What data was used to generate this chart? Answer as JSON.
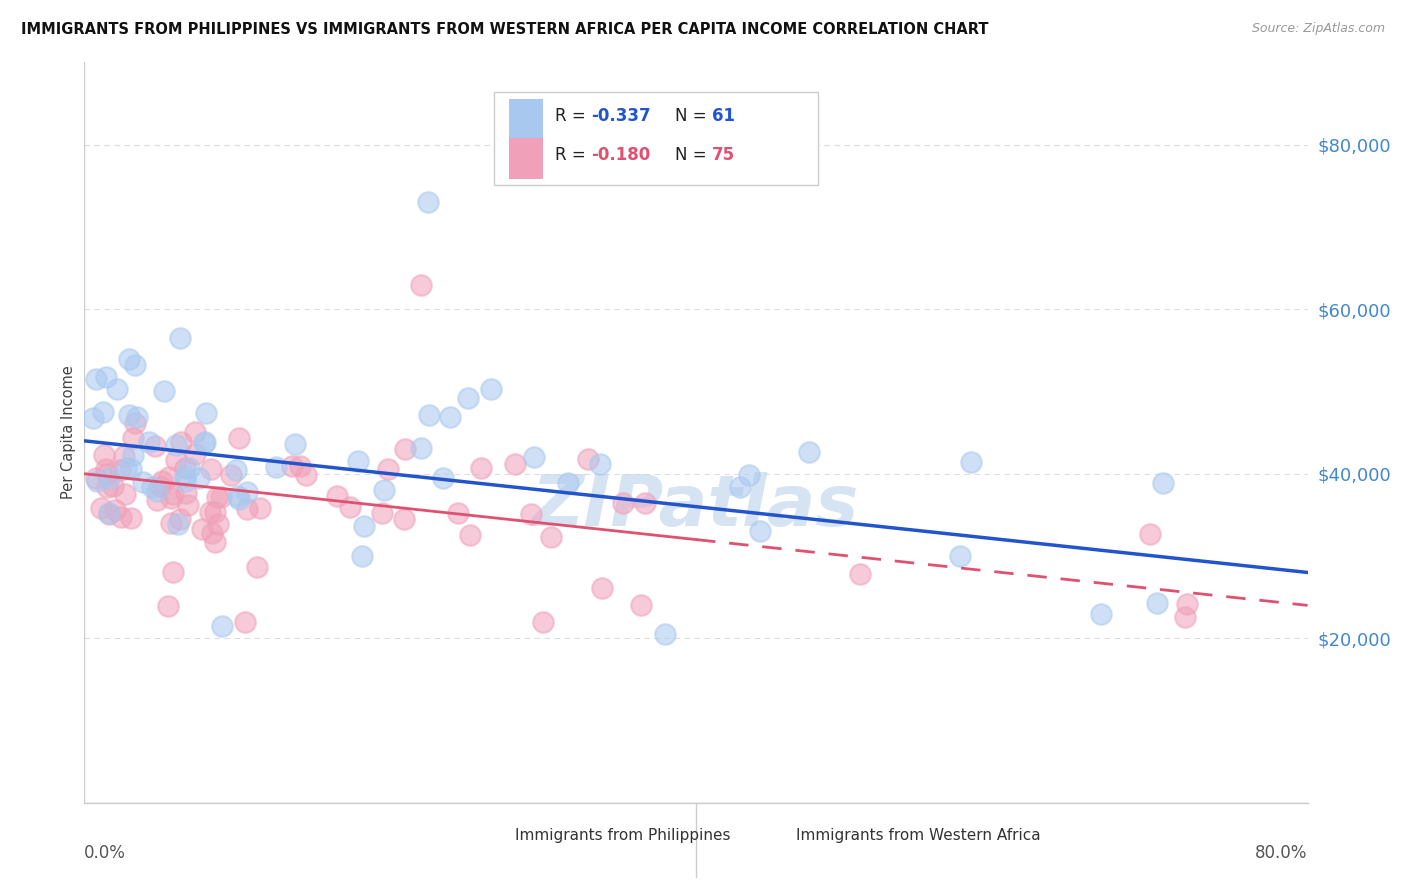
{
  "title": "IMMIGRANTS FROM PHILIPPINES VS IMMIGRANTS FROM WESTERN AFRICA PER CAPITA INCOME CORRELATION CHART",
  "source": "Source: ZipAtlas.com",
  "ylabel": "Per Capita Income",
  "y_ticks": [
    20000,
    40000,
    60000,
    80000
  ],
  "y_tick_labels": [
    "$20,000",
    "$40,000",
    "$60,000",
    "$80,000"
  ],
  "xlim": [
    0.0,
    0.8
  ],
  "ylim": [
    0,
    90000
  ],
  "legend_r1": "R = -0.337",
  "legend_n1": "N = 61",
  "legend_r2": "R = -0.180",
  "legend_n2": "N = 75",
  "color_blue": "#A8C8F0",
  "color_pink": "#F0A0B8",
  "color_blue_line": "#2255CC",
  "color_pink_line": "#E05070",
  "background_color": "#FFFFFF",
  "grid_color": "#DDDDDD",
  "watermark": "ZIPatlas"
}
